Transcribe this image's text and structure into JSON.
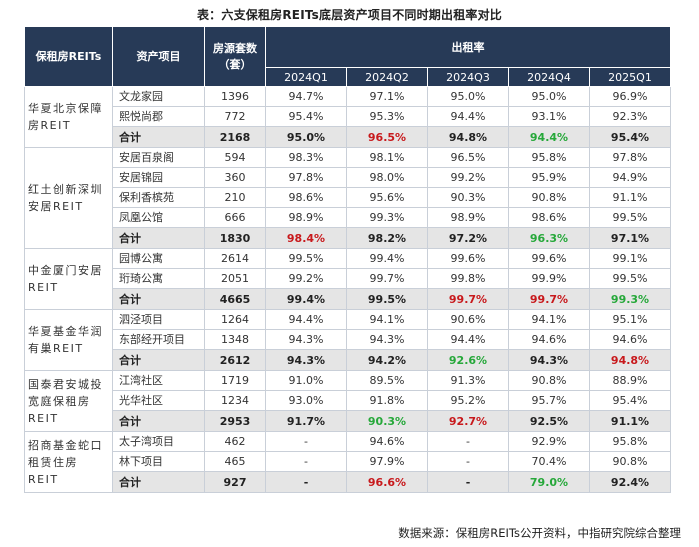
{
  "title": "表：六支保租房REITs底层资产项目不同时期出租率对比",
  "header": {
    "col_reit": "保租房REITs",
    "col_asset": "资产项目",
    "col_units_line1": "房源套数",
    "col_units_line2": "（套）",
    "col_occupancy": "出租率",
    "periods": [
      "2024Q1",
      "2024Q2",
      "2024Q3",
      "2024Q4",
      "2025Q1"
    ]
  },
  "groups": [
    {
      "name": "华夏北京保障房REIT",
      "rows": [
        {
          "asset": "文龙家园",
          "units": "1396",
          "rates": [
            "94.7%",
            "97.1%",
            "95.0%",
            "95.0%",
            "96.9%"
          ]
        },
        {
          "asset": "熙悦尚郡",
          "units": "772",
          "rates": [
            "95.4%",
            "95.3%",
            "94.4%",
            "93.1%",
            "92.3%"
          ]
        }
      ],
      "total": {
        "label": "合计",
        "units": "2168",
        "rates": [
          "95.0%",
          "96.5%",
          "94.8%",
          "94.4%",
          "95.4%"
        ],
        "colors": [
          "",
          "red",
          "",
          "green",
          ""
        ]
      }
    },
    {
      "name": "红土创新深圳安居REIT",
      "rows": [
        {
          "asset": "安居百泉阁",
          "units": "594",
          "rates": [
            "98.3%",
            "98.1%",
            "96.5%",
            "95.8%",
            "97.8%"
          ]
        },
        {
          "asset": "安居锦园",
          "units": "360",
          "rates": [
            "97.8%",
            "98.0%",
            "99.2%",
            "95.9%",
            "94.9%"
          ]
        },
        {
          "asset": "保利香槟苑",
          "units": "210",
          "rates": [
            "98.6%",
            "95.6%",
            "90.3%",
            "90.8%",
            "91.1%"
          ]
        },
        {
          "asset": "凤凰公馆",
          "units": "666",
          "rates": [
            "98.9%",
            "99.3%",
            "98.9%",
            "98.6%",
            "99.5%"
          ]
        }
      ],
      "total": {
        "label": "合计",
        "units": "1830",
        "rates": [
          "98.4%",
          "98.2%",
          "97.2%",
          "96.3%",
          "97.1%"
        ],
        "colors": [
          "red",
          "",
          "",
          "green",
          ""
        ]
      }
    },
    {
      "name": "中金厦门安居REIT",
      "rows": [
        {
          "asset": "园博公寓",
          "units": "2614",
          "rates": [
            "99.5%",
            "99.4%",
            "99.6%",
            "99.6%",
            "99.1%"
          ]
        },
        {
          "asset": "珩琦公寓",
          "units": "2051",
          "rates": [
            "99.2%",
            "99.7%",
            "99.8%",
            "99.9%",
            "99.5%"
          ]
        }
      ],
      "total": {
        "label": "合计",
        "units": "4665",
        "rates": [
          "99.4%",
          "99.5%",
          "99.7%",
          "99.7%",
          "99.3%"
        ],
        "colors": [
          "",
          "",
          "red",
          "red",
          "green"
        ]
      }
    },
    {
      "name": "华夏基金华润有巢REIT",
      "rows": [
        {
          "asset": "泗泾项目",
          "units": "1264",
          "rates": [
            "94.4%",
            "94.1%",
            "90.6%",
            "94.1%",
            "95.1%"
          ]
        },
        {
          "asset": "东部经开项目",
          "units": "1348",
          "rates": [
            "94.3%",
            "94.3%",
            "94.4%",
            "94.6%",
            "94.6%"
          ]
        }
      ],
      "total": {
        "label": "合计",
        "units": "2612",
        "rates": [
          "94.3%",
          "94.2%",
          "92.6%",
          "94.3%",
          "94.8%"
        ],
        "colors": [
          "",
          "",
          "green",
          "",
          "red"
        ]
      }
    },
    {
      "name": "国泰君安城投宽庭保租房REIT",
      "rows": [
        {
          "asset": "江湾社区",
          "units": "1719",
          "rates": [
            "91.0%",
            "89.5%",
            "91.3%",
            "90.8%",
            "88.9%"
          ]
        },
        {
          "asset": "光华社区",
          "units": "1234",
          "rates": [
            "93.0%",
            "91.8%",
            "95.2%",
            "95.7%",
            "95.4%"
          ]
        }
      ],
      "total": {
        "label": "合计",
        "units": "2953",
        "rates": [
          "91.7%",
          "90.3%",
          "92.7%",
          "92.5%",
          "91.1%"
        ],
        "colors": [
          "",
          "green",
          "red",
          "",
          ""
        ]
      }
    },
    {
      "name": "招商基金蛇口租赁住房REIT",
      "rows": [
        {
          "asset": "太子湾项目",
          "units": "462",
          "rates": [
            "-",
            "94.6%",
            "-",
            "92.9%",
            "95.8%"
          ]
        },
        {
          "asset": "林下项目",
          "units": "465",
          "rates": [
            "-",
            "97.9%",
            "-",
            "70.4%",
            "90.8%"
          ]
        }
      ],
      "total": {
        "label": "合计",
        "units": "927",
        "rates": [
          "-",
          "96.6%",
          "-",
          "79.0%",
          "92.4%"
        ],
        "colors": [
          "",
          "red",
          "",
          "green",
          ""
        ]
      }
    }
  ],
  "source": "数据来源：保租房REITs公开资料，中指研究院综合整理",
  "colors": {
    "header_bg": "#273a57",
    "total_bg": "#e5e5e5",
    "highlight_red": "#c8191c",
    "highlight_green": "#26a83a"
  }
}
